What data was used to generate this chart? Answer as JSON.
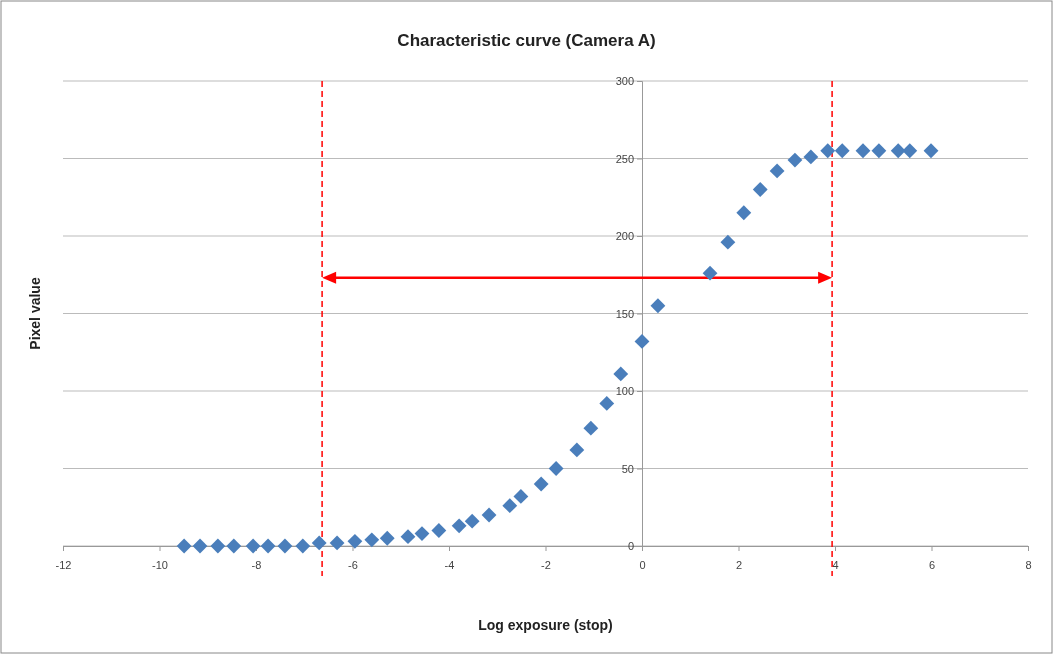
{
  "chart_data": {
    "type": "scatter",
    "title": "Characteristic curve (Camera A)",
    "xlabel": "Log exposure (stop)",
    "ylabel": "Pixel value",
    "x": [
      -9.49,
      -9.16,
      -8.79,
      -8.46,
      -8.06,
      -7.75,
      -7.4,
      -7.03,
      -6.69,
      -6.32,
      -5.95,
      -5.6,
      -5.28,
      -4.85,
      -4.56,
      -4.21,
      -3.79,
      -3.52,
      -3.17,
      -2.74,
      -2.51,
      -2.09,
      -1.78,
      -1.35,
      -1.06,
      -0.73,
      -0.44,
      0,
      0.33,
      1.41,
      1.78,
      2.11,
      2.45,
      2.8,
      3.17,
      3.5,
      3.85,
      4.15,
      4.58,
      4.91,
      5.31,
      5.55,
      5.99
    ],
    "series": [
      {
        "color": "#4a7ebb",
        "values": [
          0,
          0,
          0,
          0,
          0,
          0,
          0,
          0,
          2,
          2,
          3,
          4,
          5,
          6,
          8,
          10,
          13,
          16,
          20,
          26,
          32,
          40,
          50,
          62,
          76,
          92,
          111,
          132,
          155,
          176,
          196,
          215,
          230,
          242,
          249,
          251,
          255,
          255,
          255,
          255,
          255,
          255,
          255
        ]
      }
    ],
    "xlim": [
      -12,
      8
    ],
    "xticks": [
      -12,
      -10,
      -8,
      -6,
      -4,
      -2,
      0,
      2,
      4,
      6,
      8
    ],
    "ylim": [
      0,
      300
    ],
    "yticks": [
      0,
      50,
      100,
      150,
      200,
      250,
      300
    ],
    "grid": "y",
    "marker": "diamond",
    "ref_lines": [
      {
        "axis": "x",
        "value": -6.63,
        "color": "#ff0000",
        "line_style": "dashed"
      },
      {
        "axis": "x",
        "value": 3.94,
        "color": "#ff0000",
        "line_style": "dashed"
      }
    ]
  }
}
